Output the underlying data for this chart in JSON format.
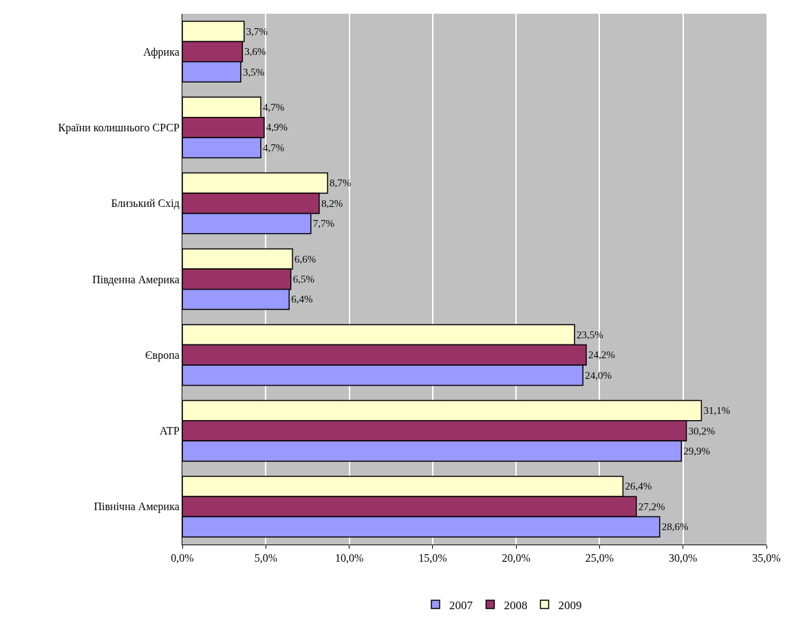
{
  "chart_data": {
    "type": "bar",
    "orientation": "horizontal",
    "categories": [
      "Африка",
      "Країни колишнього СРСР",
      "Близький Схід",
      "Південна Америка",
      "Європа",
      "АТР",
      "Північна Америка"
    ],
    "series": [
      {
        "name": "2007",
        "color": "#9999ff",
        "values": [
          3.5,
          4.7,
          7.7,
          6.4,
          24.0,
          29.9,
          28.6
        ],
        "value_labels": [
          "3,5%",
          "4,7%",
          "7,7%",
          "6,4%",
          "24,0%",
          "29,9%",
          "28,6%"
        ]
      },
      {
        "name": "2008",
        "color": "#993366",
        "values": [
          3.6,
          4.9,
          8.2,
          6.5,
          24.2,
          30.2,
          27.2
        ],
        "value_labels": [
          "3,6%",
          "4,9%",
          "8,2%",
          "6,5%",
          "24,2%",
          "30,2%",
          "27,2%"
        ]
      },
      {
        "name": "2009",
        "color": "#ffffcc",
        "values": [
          3.7,
          4.7,
          8.7,
          6.6,
          23.5,
          31.1,
          26.4
        ],
        "value_labels": [
          "3,7%",
          "4,7%",
          "8,7%",
          "6,6%",
          "23,5%",
          "31,1%",
          "26,4%"
        ]
      }
    ],
    "xlim": [
      0,
      35
    ],
    "xticks": [
      {
        "value": 0,
        "label": "0,0%"
      },
      {
        "value": 5,
        "label": "5,0%"
      },
      {
        "value": 10,
        "label": "10,0%"
      },
      {
        "value": 15,
        "label": "15,0%"
      },
      {
        "value": 20,
        "label": "20,0%"
      },
      {
        "value": 25,
        "label": "25,0%"
      },
      {
        "value": 30,
        "label": "30,0%"
      },
      {
        "value": 35,
        "label": "35,0%"
      }
    ],
    "grid": "x",
    "legend": "bottom"
  }
}
